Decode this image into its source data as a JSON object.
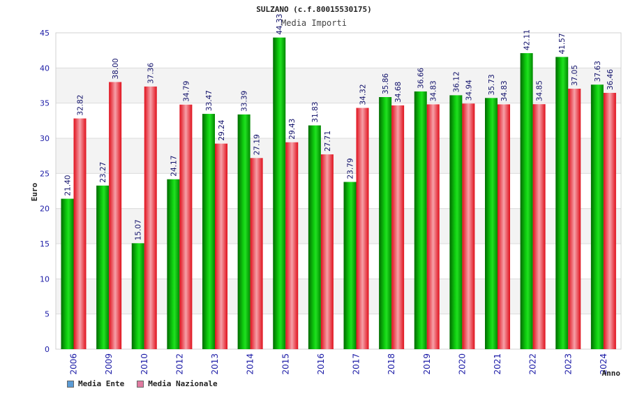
{
  "chart_data": {
    "type": "bar",
    "title": "SULZANO (c.f.80015530175)",
    "subtitle": "Media Importi",
    "xlabel": "Anno",
    "ylabel": "Euro",
    "ylim": [
      0,
      45
    ],
    "yticks": [
      0,
      5,
      10,
      15,
      20,
      25,
      30,
      35,
      40,
      45
    ],
    "grid": true,
    "legend_position": "bottom-left",
    "categories": [
      "2006",
      "2009",
      "2010",
      "2012",
      "2013",
      "2014",
      "2015",
      "2016",
      "2017",
      "2018",
      "2019",
      "2020",
      "2021",
      "2022",
      "2023",
      "2024"
    ],
    "series": [
      {
        "name": "Media Ente",
        "color": "#00b000",
        "legend_color": "#5b9bd5",
        "values": [
          21.4,
          23.27,
          15.07,
          24.17,
          33.47,
          33.39,
          44.33,
          31.83,
          23.79,
          35.86,
          36.66,
          36.12,
          35.73,
          42.11,
          41.57,
          37.63
        ],
        "labels": [
          "21.40",
          "23.27",
          "15.07",
          "24.17",
          "33.47",
          "33.39",
          "44.33",
          "31.83",
          "23.79",
          "35.86",
          "36.66",
          "36.12",
          "35.73",
          "42.11",
          "41.57",
          "37.63"
        ]
      },
      {
        "name": "Media Nazionale",
        "color": "#e8202a",
        "legend_color": "#e07aa0",
        "values": [
          32.82,
          38.0,
          37.36,
          34.79,
          29.24,
          27.19,
          29.43,
          27.71,
          34.32,
          34.68,
          34.83,
          34.94,
          34.83,
          34.85,
          37.05,
          36.46
        ],
        "labels": [
          "32.82",
          "38.00",
          "37.36",
          "34.79",
          "29.24",
          "27.19",
          "29.43",
          "27.71",
          "34.32",
          "34.68",
          "34.83",
          "34.94",
          "34.83",
          "34.85",
          "37.05",
          "36.46"
        ]
      }
    ]
  }
}
